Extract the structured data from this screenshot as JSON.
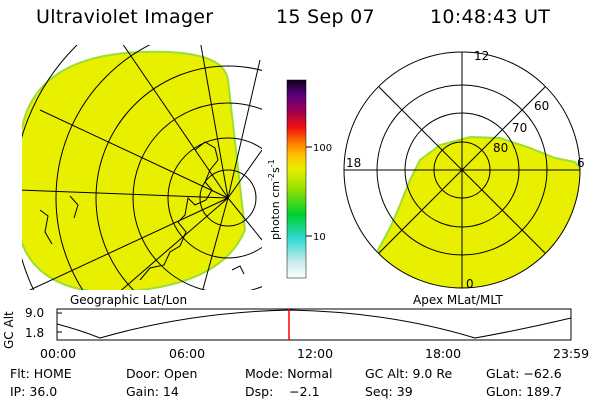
{
  "header": {
    "title": "Ultraviolet Imager",
    "date": "15 Sep 07",
    "time": "10:48:43 UT"
  },
  "geo_panel": {
    "label": "Geographic Lat/Lon"
  },
  "apex_panel": {
    "label": "Apex MLat/MLT",
    "mlt_labels": {
      "top": "12",
      "left": "18",
      "right": "6",
      "bottom": "0"
    },
    "lat_labels": [
      "60",
      "70",
      "80"
    ]
  },
  "colorbar": {
    "unit": "photon cm",
    "unit_exp1": "-2",
    "unit_mid": "s",
    "unit_exp2": "-1",
    "tick_100": "100",
    "tick_10": "10"
  },
  "altitude_plot": {
    "ylabel": "GC Alt",
    "y_ticks": [
      "9.0",
      "1.8"
    ],
    "x_ticks": [
      "00:00",
      "06:00",
      "12:00",
      "18:00",
      "23:59"
    ]
  },
  "info": {
    "flt": "Flt: HOME",
    "door": "Door: Open",
    "mode": "Mode: Normal",
    "gc_alt": "GC Alt: 9.0 Re",
    "glat": "GLat: −62.6",
    "ip": "IP: 36.0",
    "gain": "Gain: 14",
    "dsp": "Dsp:    −2.1",
    "seq": "Seq: 39",
    "glon": "GLon: 189.7"
  },
  "colors": {
    "aurora_fill": "#e8f000",
    "limb_edge": "#9adf30",
    "current_time_marker": "#ff0000"
  }
}
